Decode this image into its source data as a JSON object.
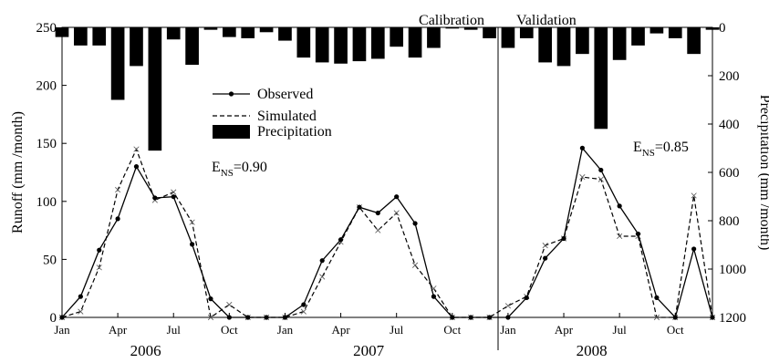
{
  "chart_data": {
    "type": "line",
    "period_labels": {
      "calibration": "Calibration",
      "validation": "Validation"
    },
    "x_tick_labels": [
      "Jan",
      "Apr",
      "Jul",
      "Oct",
      "Jan",
      "Apr",
      "Jul",
      "Oct",
      "Jan",
      "Apr",
      "Jul",
      "Oct"
    ],
    "year_labels": [
      "2006",
      "2007",
      "2008"
    ],
    "ylabel": "Runoff (mm /month)",
    "ylabel_right": "Precipitation (mm /month)",
    "ylim": [
      0,
      250
    ],
    "ylim_right": [
      0,
      1200
    ],
    "y_ticks": [
      "0",
      "50",
      "100",
      "150",
      "200",
      "250"
    ],
    "y_ticks_right": [
      "0",
      "200",
      "400",
      "600",
      "800",
      "1000",
      "1200"
    ],
    "right_axis_inverted": true,
    "legend": {
      "position": "upper-left",
      "entries": [
        "Observed",
        "Simulated",
        "Precipitation"
      ]
    },
    "annotations": [
      {
        "base": "E",
        "sub": "NS",
        "value": "=0.90"
      },
      {
        "base": "E",
        "sub": "NS",
        "value": "=0.85"
      }
    ],
    "series": [
      {
        "name": "Observed",
        "style": "solid line with dot markers",
        "values": [
          0,
          18,
          58,
          85,
          130,
          103,
          104,
          63,
          16,
          0,
          0,
          0,
          0,
          11,
          49,
          67,
          95,
          90,
          104,
          81,
          18,
          0,
          0,
          0,
          0,
          17,
          51,
          68,
          146,
          127,
          96,
          72,
          17,
          0,
          59,
          0
        ]
      },
      {
        "name": "Simulated",
        "style": "dashed line with cross markers",
        "values": [
          0,
          5,
          43,
          110,
          145,
          101,
          108,
          82,
          0,
          11,
          0,
          0,
          0,
          5,
          35,
          65,
          95,
          75,
          90,
          45,
          25,
          0,
          0,
          0,
          10,
          18,
          62,
          68,
          121,
          119,
          70,
          70,
          0,
          0,
          105,
          0
        ]
      },
      {
        "name": "Precipitation",
        "style": "black bars hanging from top axis",
        "values": [
          40,
          75,
          75,
          300,
          160,
          510,
          50,
          155,
          10,
          40,
          45,
          20,
          55,
          125,
          145,
          150,
          140,
          130,
          80,
          125,
          85,
          5,
          10,
          45,
          85,
          45,
          145,
          160,
          110,
          420,
          135,
          75,
          25,
          45,
          110,
          10
        ]
      }
    ],
    "colors": {
      "line": "#000000",
      "bar": "#000000"
    }
  }
}
